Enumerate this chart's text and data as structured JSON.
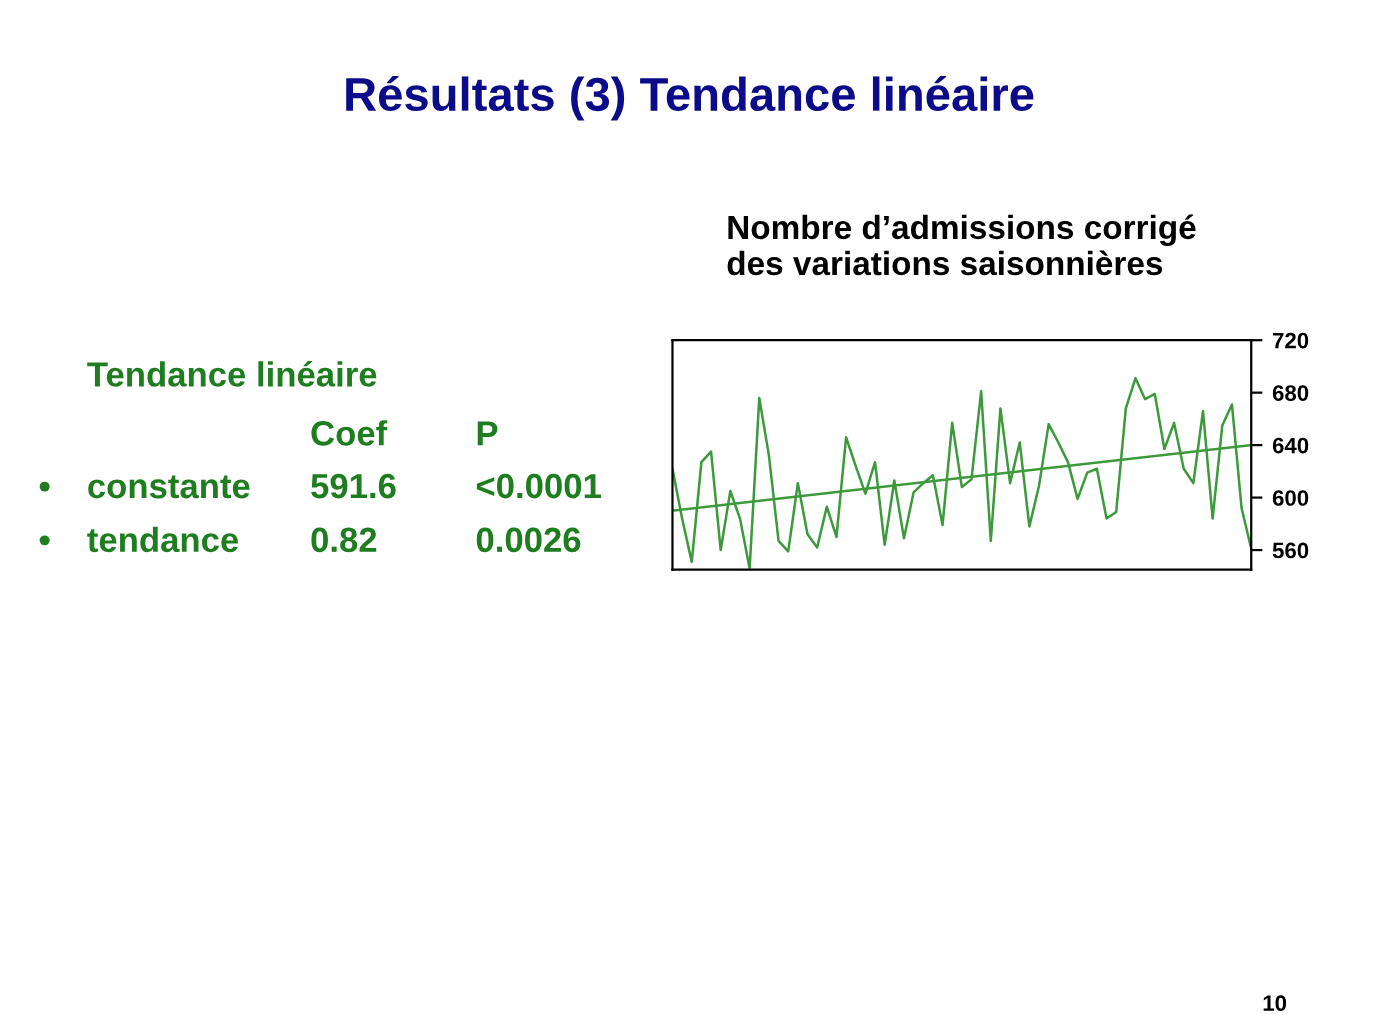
{
  "chart_data": {
    "type": "line",
    "title": "Résultats (3) Tendance linéaire",
    "subtitle": "Nombre d’admissions corrigé\ndes variations saisonnières",
    "categories": [
      null,
      null,
      null,
      null,
      null,
      null,
      null,
      null,
      null,
      null,
      null,
      null,
      null,
      null,
      null,
      null,
      null,
      null,
      null,
      null,
      null,
      null,
      null,
      null,
      null,
      null,
      null,
      null,
      null,
      null,
      null,
      null,
      null,
      null,
      null,
      null,
      null,
      null,
      null,
      null,
      null,
      null,
      null,
      null,
      null,
      null,
      null,
      null,
      null,
      null,
      null,
      null,
      null,
      null,
      null,
      null,
      null,
      null,
      null,
      null,
      null
    ],
    "series": [
      {
        "color": "#3c9a3c",
        "values": [
          622,
          584,
          551,
          627,
          635,
          560,
          605,
          584,
          546,
          676,
          632,
          567,
          559,
          611,
          572,
          562,
          593,
          570,
          646,
          624,
          603,
          627,
          564,
          613,
          569,
          604,
          611,
          617,
          579,
          657,
          608,
          614,
          681,
          567,
          668,
          611,
          642,
          578,
          609,
          656,
          642,
          627,
          599,
          619,
          622,
          584,
          589,
          668,
          691,
          675,
          679,
          637,
          657,
          622,
          611,
          666,
          584,
          655,
          671,
          592,
          561
        ]
      },
      {
        "type": "line",
        "color": "#3c9a3c",
        "values": [
          590,
          null,
          null,
          null,
          null,
          null,
          null,
          null,
          null,
          null,
          null,
          null,
          null,
          null,
          null,
          null,
          null,
          null,
          null,
          null,
          null,
          null,
          null,
          null,
          null,
          null,
          null,
          null,
          null,
          null,
          null,
          null,
          null,
          null,
          null,
          null,
          null,
          null,
          null,
          null,
          null,
          null,
          null,
          null,
          null,
          null,
          null,
          null,
          null,
          null,
          null,
          null,
          null,
          null,
          null,
          null,
          null,
          null,
          null,
          null,
          640
        ]
      }
    ],
    "ylim": [
      545,
      720
    ],
    "yticks": [
      560,
      600,
      640,
      680,
      720
    ],
    "tick_labels": "y",
    "grid": false,
    "legend": false,
    "annotations": [
      "Tendance linéaire",
      "Coef",
      "P",
      "•",
      "constante",
      "591.6",
      "<0.0001",
      "•",
      "tendance",
      "0.82",
      "0.0026",
      "10"
    ]
  }
}
